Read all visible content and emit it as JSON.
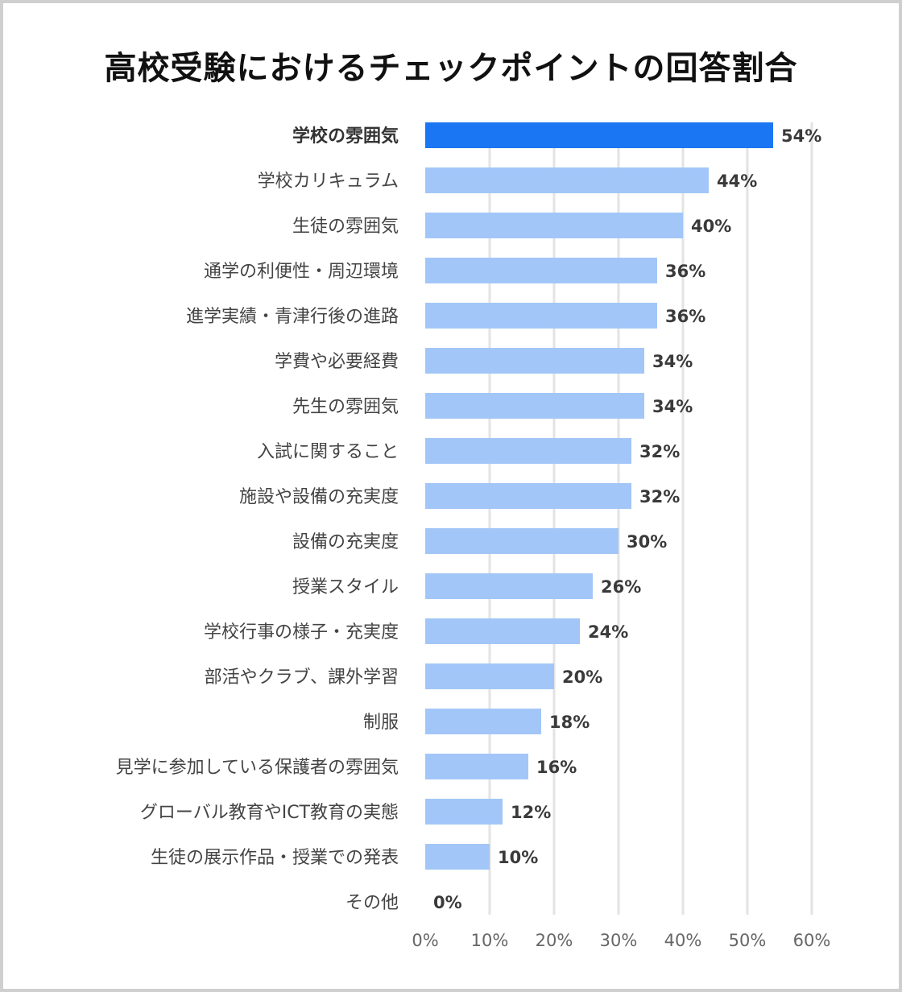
{
  "chart_data": {
    "type": "bar",
    "orientation": "horizontal",
    "title": "高校受験におけるチェックポイントの回答割合",
    "categories": [
      "学校の雰囲気",
      "学校カリキュラム",
      "生徒の雰囲気",
      "通学の利便性・周辺環境",
      "進学実績・青津行後の進路",
      "学費や必要経費",
      "先生の雰囲気",
      "入試に関すること",
      "施設や設備の充実度",
      "設備の充実度",
      "授業スタイル",
      "学校行事の様子・充実度",
      "部活やクラブ、課外学習",
      "制服",
      "見学に参加している保護者の雰囲気",
      "グローバル教育やICT教育の実態",
      "生徒の展示作品・授業での発表",
      "その他"
    ],
    "values": [
      54,
      44,
      40,
      36,
      36,
      34,
      34,
      32,
      32,
      30,
      26,
      24,
      20,
      18,
      16,
      12,
      10,
      0
    ],
    "value_labels": [
      "54%",
      "44%",
      "40%",
      "36%",
      "36%",
      "34%",
      "34%",
      "32%",
      "32%",
      "30%",
      "26%",
      "24%",
      "20%",
      "18%",
      "16%",
      "12%",
      "10%",
      "0%"
    ],
    "highlight_index": 0,
    "xlim": [
      0,
      60
    ],
    "x_ticks": [
      0,
      10,
      20,
      30,
      40,
      50,
      60
    ],
    "x_tick_labels": [
      "0%",
      "10%",
      "20%",
      "30%",
      "40%",
      "50%",
      "60%"
    ],
    "grid": true,
    "colors": {
      "highlight": "#1a76f2",
      "bar": "#a3c6f8",
      "grid": "#e3e3e3"
    }
  }
}
